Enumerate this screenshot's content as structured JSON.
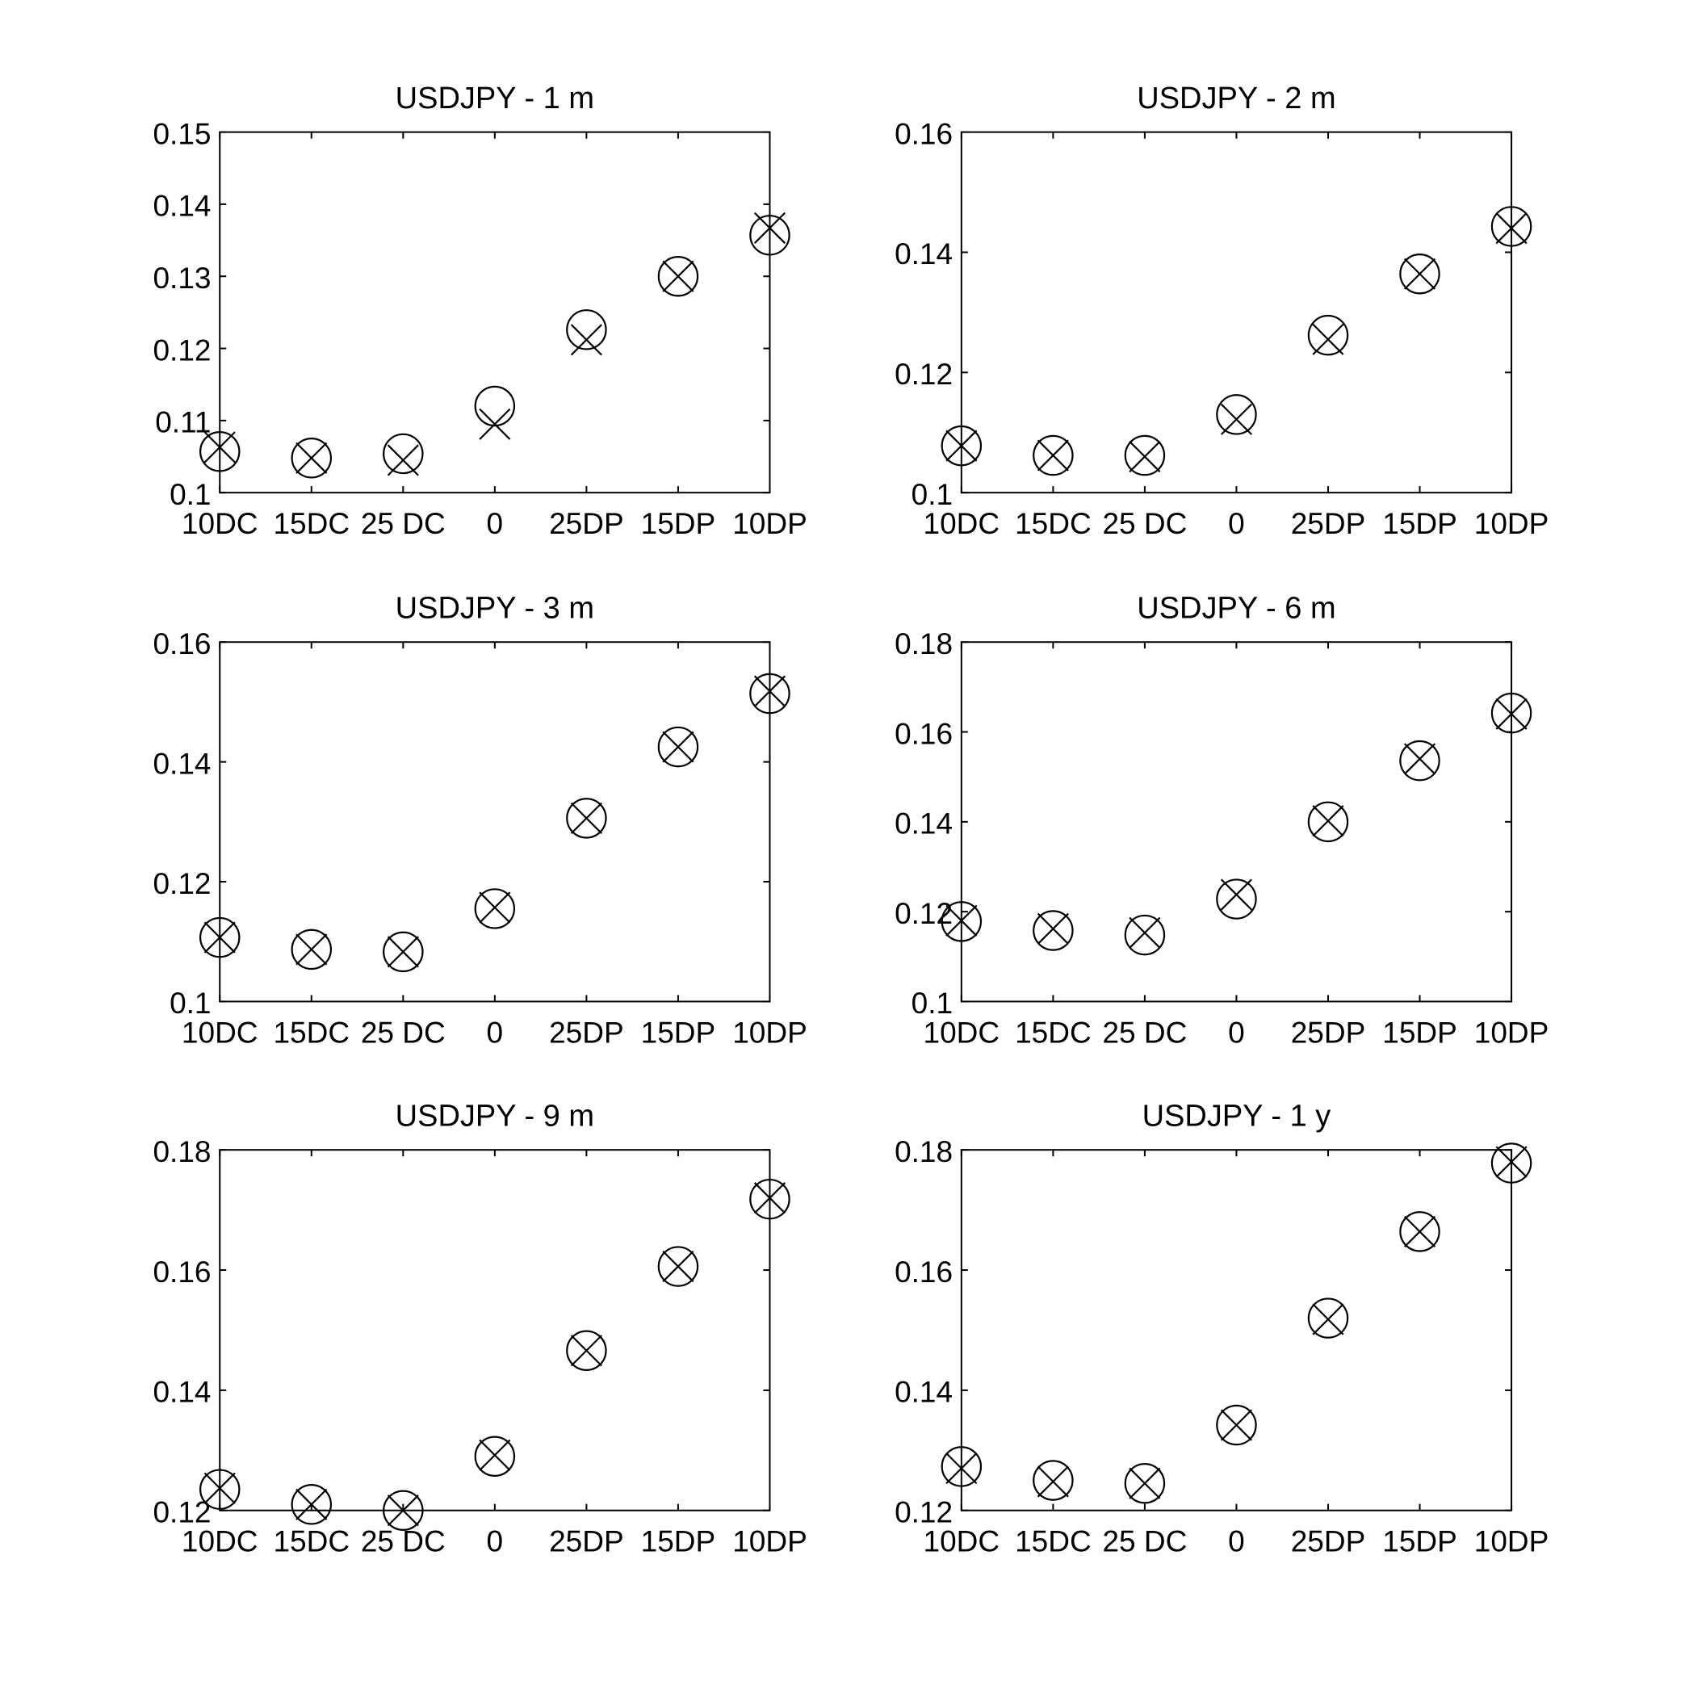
{
  "chart_data": [
    {
      "type": "scatter",
      "title": "USDJPY - 1 m",
      "categories": [
        "10DC",
        "15DC",
        "25 DC",
        "0",
        "25DP",
        "15DP",
        "10DP"
      ],
      "ylim": [
        0.1,
        0.15
      ],
      "yticks": [
        "0.1",
        "0.11",
        "0.12",
        "0.13",
        "0.14",
        "0.15"
      ],
      "series": [
        {
          "marker": "circle",
          "values": [
            0.1057,
            0.1048,
            0.1054,
            0.112,
            0.1226,
            0.13,
            0.1357
          ]
        },
        {
          "marker": "x",
          "values": [
            0.1063,
            0.1048,
            0.1045,
            0.1095,
            0.1212,
            0.13,
            0.1367
          ]
        }
      ]
    },
    {
      "type": "scatter",
      "title": "USDJPY - 2 m",
      "categories": [
        "10DC",
        "15DC",
        "25 DC",
        "0",
        "25DP",
        "15DP",
        "10DP"
      ],
      "ylim": [
        0.1,
        0.16
      ],
      "yticks": [
        "0.1",
        "0.12",
        "0.14",
        "0.16"
      ],
      "series": [
        {
          "marker": "circle",
          "values": [
            0.1078,
            0.1062,
            0.1062,
            0.113,
            0.1262,
            0.1364,
            0.1443
          ]
        },
        {
          "marker": "x",
          "values": [
            0.1078,
            0.1062,
            0.106,
            0.1122,
            0.1255,
            0.1364,
            0.144
          ]
        }
      ]
    },
    {
      "type": "scatter",
      "title": "USDJPY - 3 m",
      "categories": [
        "10DC",
        "15DC",
        "25 DC",
        "0",
        "25DP",
        "15DP",
        "10DP"
      ],
      "ylim": [
        0.1,
        0.16
      ],
      "yticks": [
        "0.1",
        "0.12",
        "0.14",
        "0.16"
      ],
      "series": [
        {
          "marker": "circle",
          "values": [
            0.1107,
            0.1087,
            0.1083,
            0.1155,
            0.1306,
            0.1425,
            0.1514
          ]
        },
        {
          "marker": "x",
          "values": [
            0.1107,
            0.1087,
            0.1083,
            0.1157,
            0.1306,
            0.1425,
            0.1518
          ]
        }
      ]
    },
    {
      "type": "scatter",
      "title": "USDJPY - 6 m",
      "categories": [
        "10DC",
        "15DC",
        "25 DC",
        "0",
        "25DP",
        "15DP",
        "10DP"
      ],
      "ylim": [
        0.1,
        0.18
      ],
      "yticks": [
        "0.1",
        "0.12",
        "0.14",
        "0.16",
        "0.18"
      ],
      "series": [
        {
          "marker": "circle",
          "values": [
            0.1178,
            0.1158,
            0.1148,
            0.1228,
            0.14,
            0.1536,
            0.1642
          ]
        },
        {
          "marker": "x",
          "values": [
            0.118,
            0.1162,
            0.1153,
            0.1238,
            0.1402,
            0.154,
            0.164
          ]
        }
      ]
    },
    {
      "type": "scatter",
      "title": "USDJPY - 9 m",
      "categories": [
        "10DC",
        "15DC",
        "25 DC",
        "0",
        "25DP",
        "15DP",
        "10DP"
      ],
      "ylim": [
        0.12,
        0.18
      ],
      "yticks": [
        "0.12",
        "0.14",
        "0.16",
        "0.18"
      ],
      "series": [
        {
          "marker": "circle",
          "values": [
            0.1235,
            0.121,
            0.12,
            0.129,
            0.1466,
            0.1606,
            0.1718
          ]
        },
        {
          "marker": "x",
          "values": [
            0.1237,
            0.121,
            0.12,
            0.1292,
            0.1466,
            0.1606,
            0.172
          ]
        }
      ]
    },
    {
      "type": "scatter",
      "title": "USDJPY - 1 y",
      "categories": [
        "10DC",
        "15DC",
        "25 DC",
        "0",
        "25DP",
        "15DP",
        "10DP"
      ],
      "ylim": [
        0.12,
        0.18
      ],
      "yticks": [
        "0.12",
        "0.14",
        "0.16",
        "0.18"
      ],
      "series": [
        {
          "marker": "circle",
          "values": [
            0.1273,
            0.125,
            0.1245,
            0.1342,
            0.152,
            0.1664,
            0.1778
          ]
        },
        {
          "marker": "x",
          "values": [
            0.127,
            0.1248,
            0.1245,
            0.1342,
            0.1518,
            0.1664,
            0.178
          ]
        }
      ]
    }
  ]
}
